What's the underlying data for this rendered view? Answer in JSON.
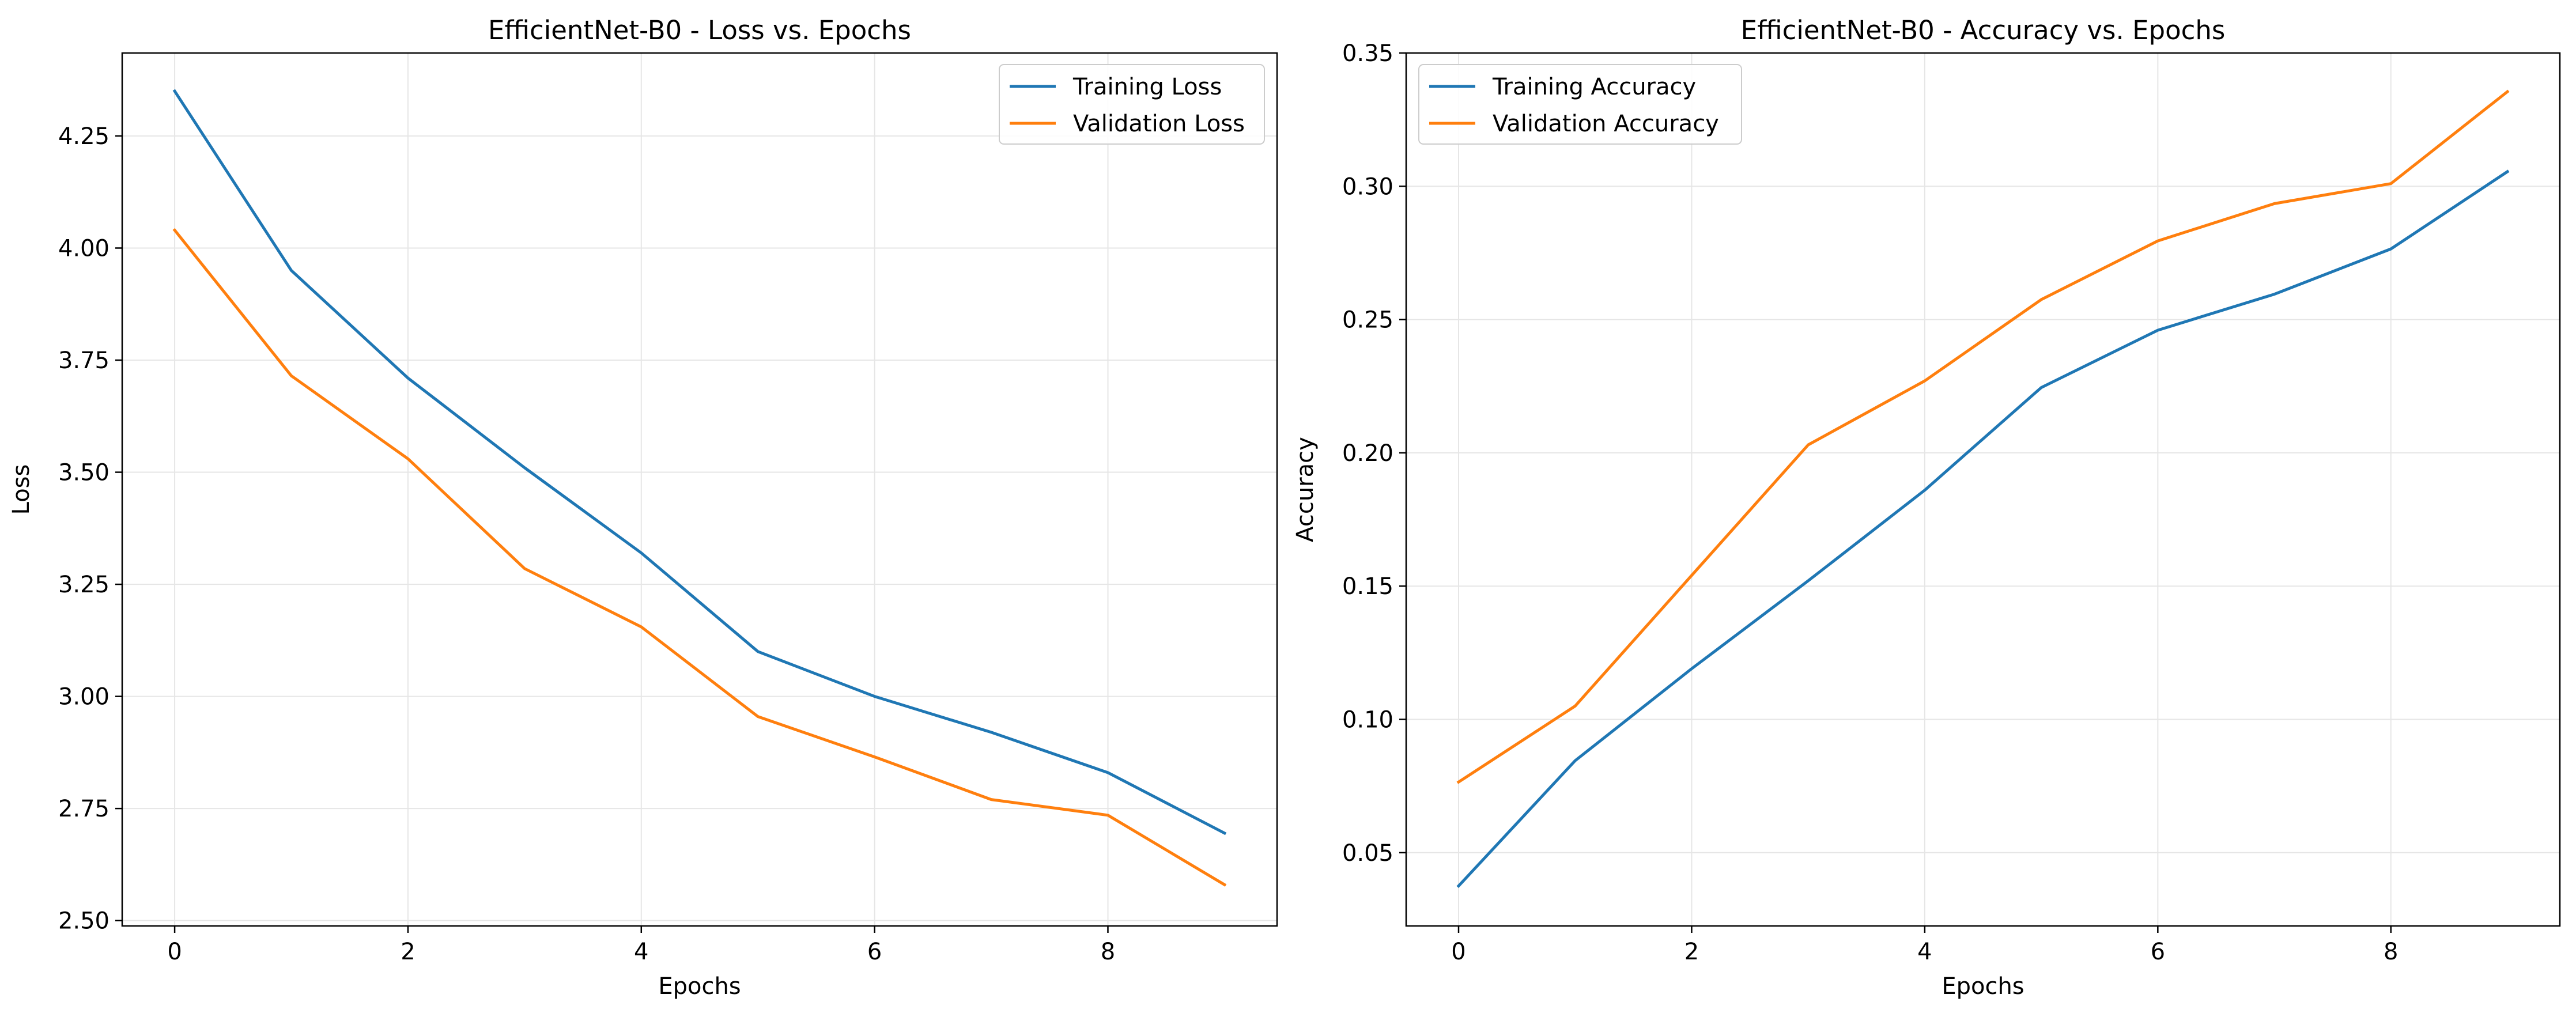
{
  "chart_data": [
    {
      "type": "line",
      "title": "EfficientNet-B0 - Loss vs. Epochs",
      "xlabel": "Epochs",
      "ylabel": "Loss",
      "x": [
        0,
        1,
        2,
        3,
        4,
        5,
        6,
        7,
        8,
        9
      ],
      "xlim": [
        -0.45,
        9.45
      ],
      "ylim": [
        2.488,
        4.435
      ],
      "xticks": [
        0,
        2,
        4,
        6,
        8
      ],
      "xtick_labels": [
        "0",
        "2",
        "4",
        "6",
        "8"
      ],
      "yticks": [
        2.5,
        2.75,
        3.0,
        3.25,
        3.5,
        3.75,
        4.0,
        4.25
      ],
      "ytick_labels": [
        "2.50",
        "2.75",
        "3.00",
        "3.25",
        "3.50",
        "3.75",
        "4.00",
        "4.25"
      ],
      "grid": true,
      "legend_position": "top-right",
      "series": [
        {
          "name": "Training Loss",
          "color": "#1f77b4",
          "values": [
            4.35,
            3.95,
            3.71,
            3.51,
            3.32,
            3.1,
            3.0,
            2.92,
            2.83,
            2.695
          ]
        },
        {
          "name": "Validation Loss",
          "color": "#ff7f0e",
          "values": [
            4.04,
            3.715,
            3.53,
            3.285,
            3.155,
            2.955,
            2.865,
            2.77,
            2.735,
            2.58
          ]
        }
      ]
    },
    {
      "type": "line",
      "title": "EfficientNet-B0 - Accuracy vs. Epochs",
      "xlabel": "Epochs",
      "ylabel": "Accuracy",
      "x": [
        0,
        1,
        2,
        3,
        4,
        5,
        6,
        7,
        8,
        9
      ],
      "xlim": [
        -0.45,
        9.45
      ],
      "ylim": [
        0.0225,
        0.35
      ],
      "xticks": [
        0,
        2,
        4,
        6,
        8
      ],
      "xtick_labels": [
        "0",
        "2",
        "4",
        "6",
        "8"
      ],
      "yticks": [
        0.05,
        0.1,
        0.15,
        0.2,
        0.25,
        0.3,
        0.35
      ],
      "ytick_labels": [
        "0.05",
        "0.10",
        "0.15",
        "0.20",
        "0.25",
        "0.30",
        "0.35"
      ],
      "grid": true,
      "legend_position": "top-left",
      "series": [
        {
          "name": "Training Accuracy",
          "color": "#1f77b4",
          "values": [
            0.0375,
            0.0845,
            0.119,
            0.152,
            0.186,
            0.2245,
            0.246,
            0.2595,
            0.2765,
            0.3055
          ]
        },
        {
          "name": "Validation Accuracy",
          "color": "#ff7f0e",
          "values": [
            0.0765,
            0.105,
            0.154,
            0.203,
            0.227,
            0.2575,
            0.2795,
            0.2935,
            0.301,
            0.3355
          ]
        }
      ]
    }
  ]
}
